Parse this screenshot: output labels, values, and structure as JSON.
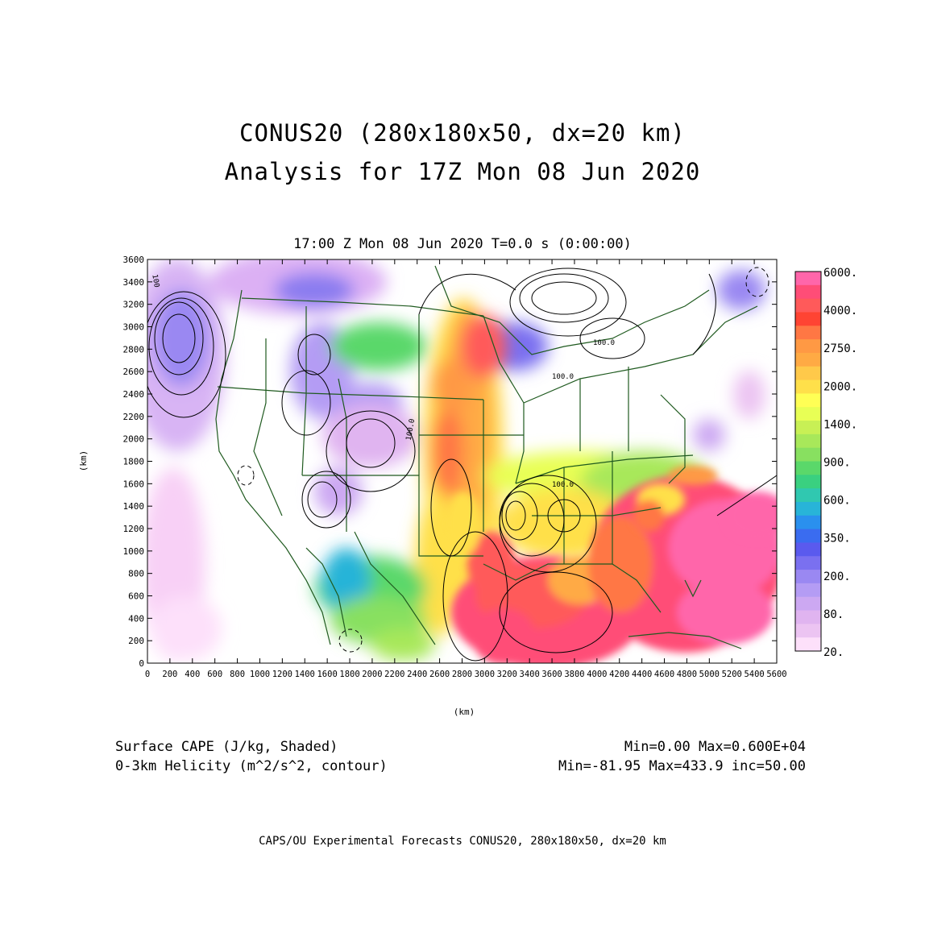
{
  "title_line1": "CONUS20 (280x180x50, dx=20 km)",
  "title_line2": "Analysis for 17Z Mon 08 Jun 2020",
  "subtitle": "17:00 Z Mon 08 Jun 2020    T=0.0 s (0:00:00)",
  "chart_data": {
    "type": "heatmap",
    "xlabel": "(km)",
    "ylabel": "(km)",
    "xlim": [
      0,
      5600
    ],
    "ylim": [
      0,
      3600
    ],
    "x_ticks": [
      "0",
      "200",
      "400",
      "600",
      "800",
      "1000",
      "1200",
      "1400",
      "1600",
      "1800",
      "2000",
      "2200",
      "2400",
      "2600",
      "2800",
      "3000",
      "3200",
      "3400",
      "3600",
      "3800",
      "4000",
      "4200",
      "4400",
      "4600",
      "4800",
      "5000",
      "5200",
      "5400",
      "5600"
    ],
    "y_ticks": [
      "0",
      "200",
      "400",
      "600",
      "800",
      "1000",
      "1200",
      "1400",
      "1600",
      "1800",
      "2000",
      "2200",
      "2400",
      "2600",
      "2800",
      "3000",
      "3200",
      "3400",
      "3600"
    ],
    "shaded_field": "Surface CAPE (J/kg, Shaded)",
    "contour_field": "0-3km Helicity (m^2/s^2, contour)",
    "contour_labels": [
      "100",
      "100.0",
      "100.0",
      "100.0",
      "100.0"
    ],
    "colorbar": {
      "labels": [
        "6000.",
        "4000.",
        "2750.",
        "2000.",
        "1400.",
        "900.",
        "600.",
        "350.",
        "200.",
        "80.",
        "20."
      ],
      "colors": [
        "#ff66aa",
        "#ff4d77",
        "#ff5a5a",
        "#ff4433",
        "#ff7744",
        "#ff9944",
        "#ffaa44",
        "#ffc94a",
        "#ffe04a",
        "#ffff55",
        "#e8ff55",
        "#c8f055",
        "#a8e85a",
        "#88e060",
        "#5ad86a",
        "#3ad080",
        "#30c8b0",
        "#28b4d8",
        "#2a90ee",
        "#3a6cf0",
        "#5a5aee",
        "#7a70f0",
        "#9a88f2",
        "#b49cf4",
        "#cca8f2",
        "#e0b4f0",
        "#ecc4f2",
        "#fde0fa"
      ]
    },
    "shaded_stats": "Min=0.00 Max=0.600E+04",
    "contour_stats": "Min=-81.95 Max=433.9 inc=50.00"
  },
  "footer": "CAPS/OU Experimental Forecasts  CONUS20, 280x180x50, dx=20 km"
}
